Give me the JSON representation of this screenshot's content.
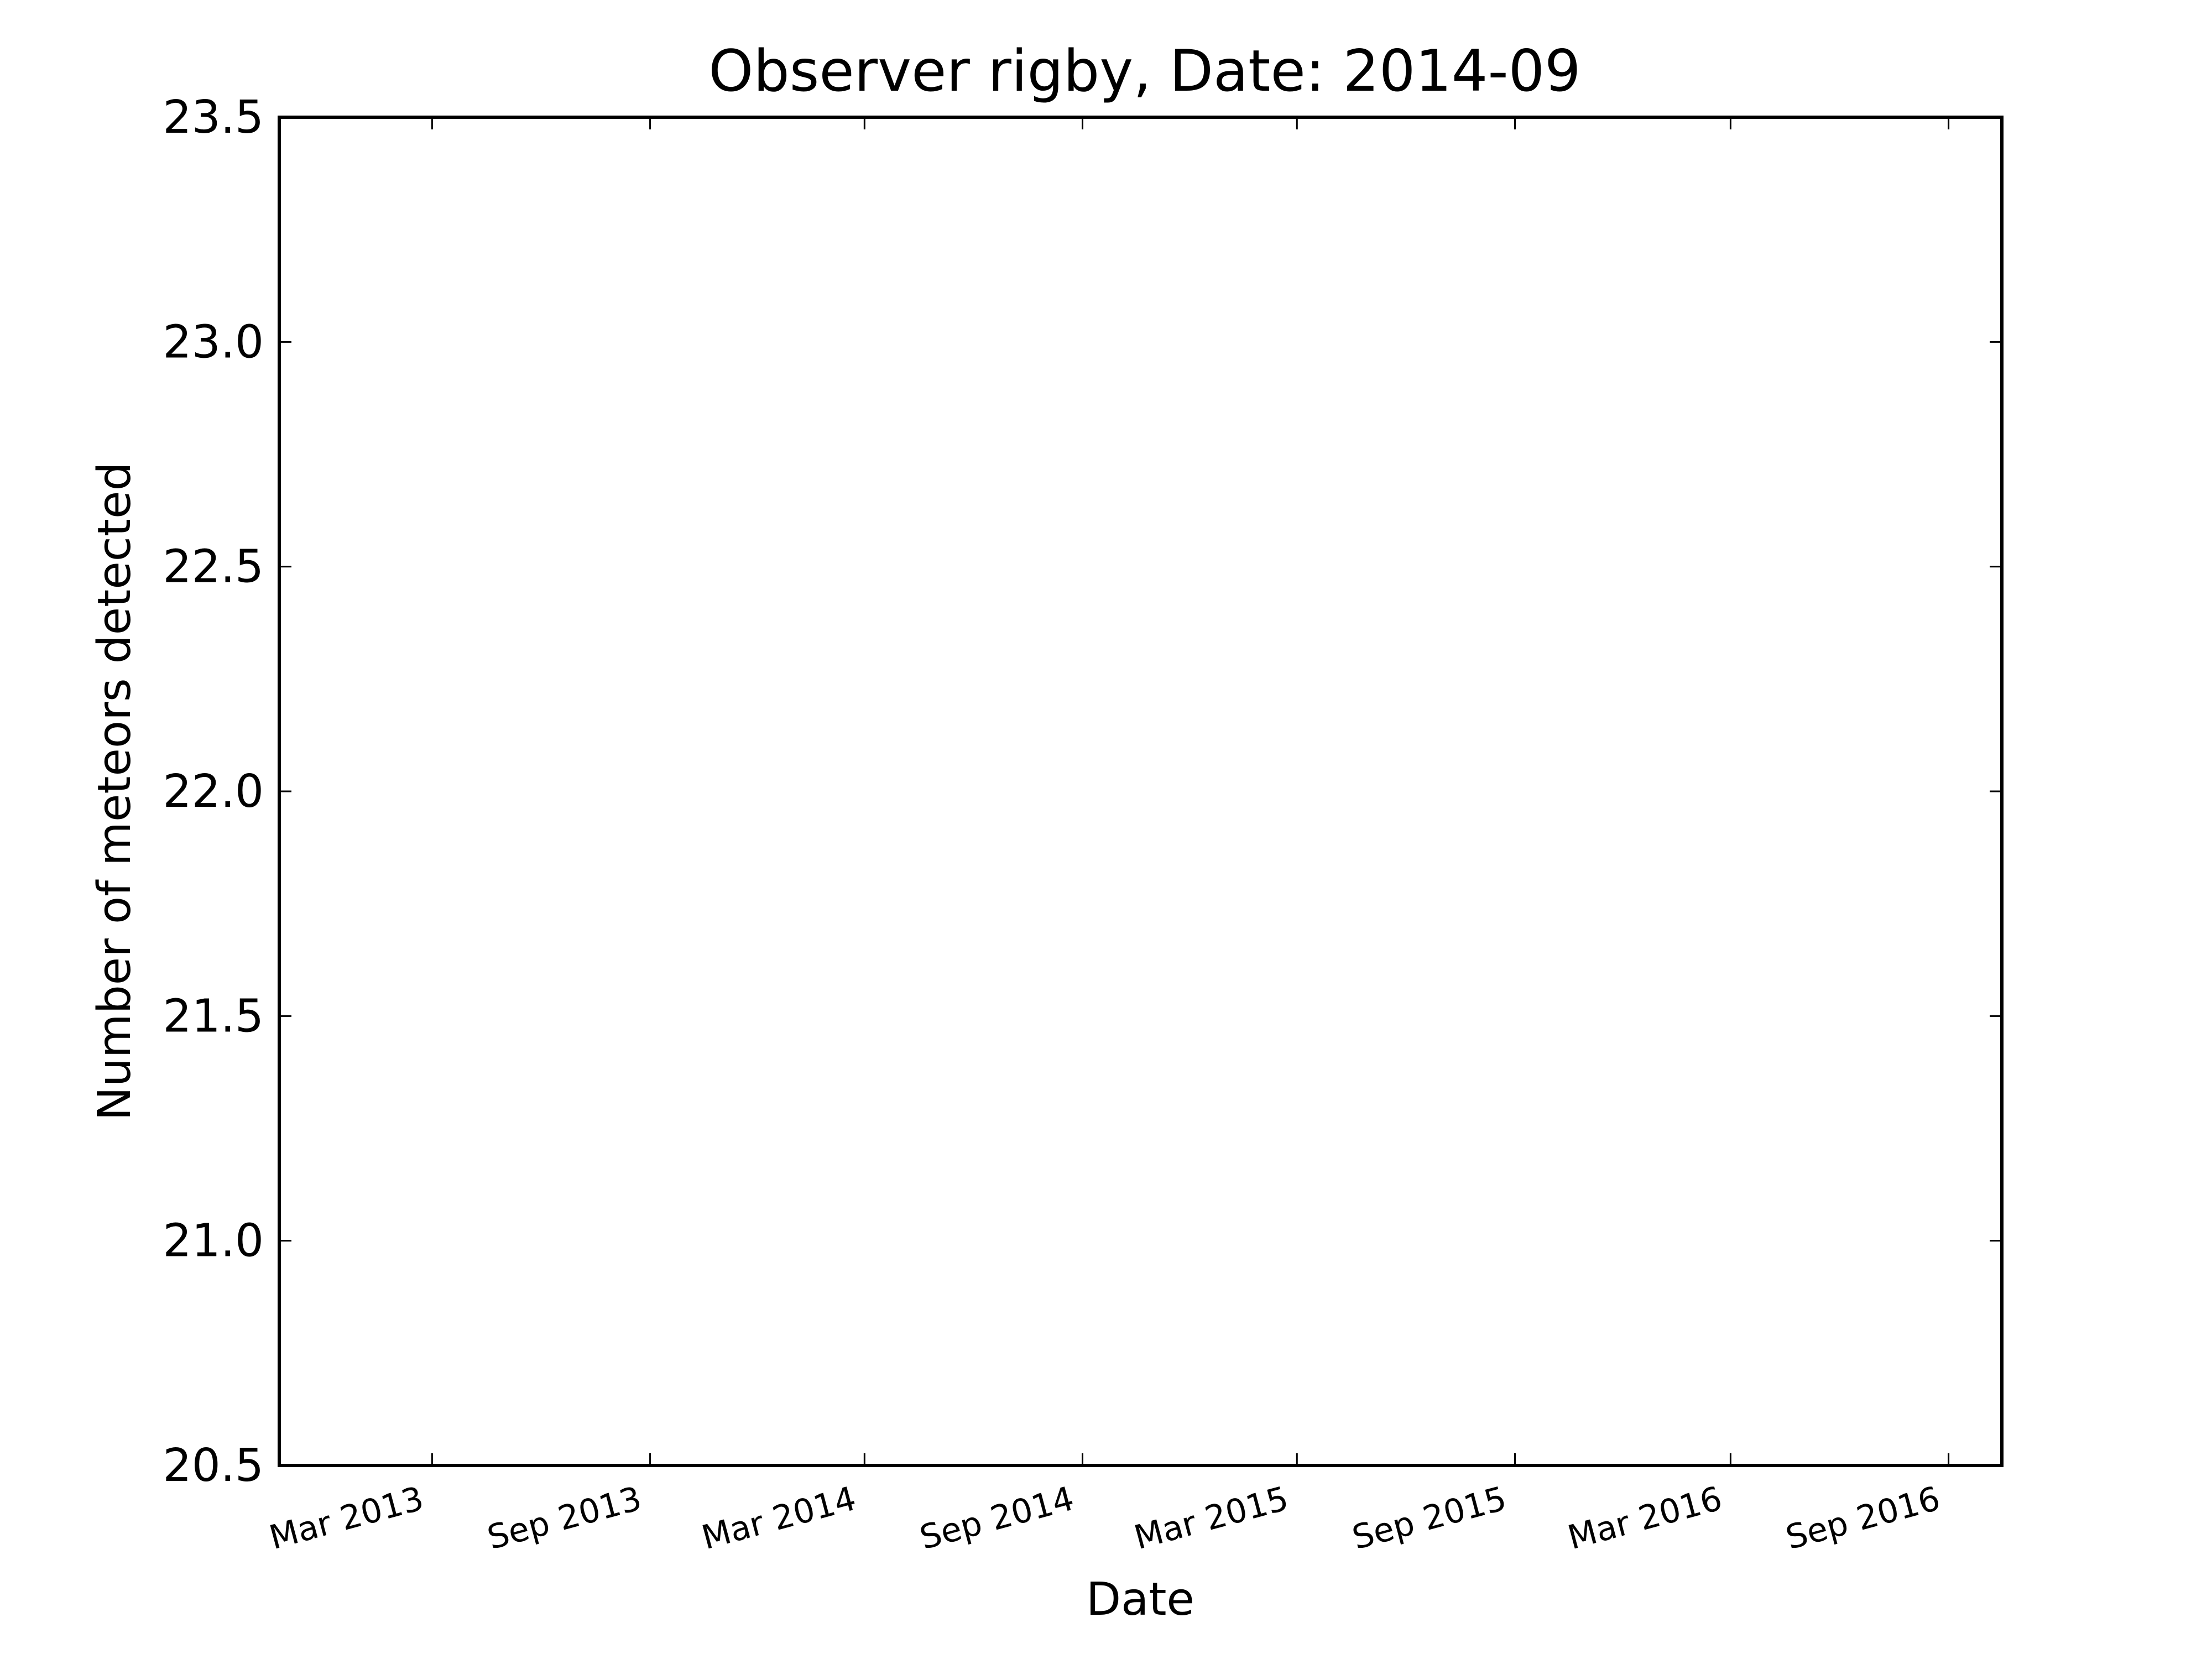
{
  "chart_data": {
    "type": "line",
    "title": "Observer rigby, Date: 2014-09",
    "xlabel": "Date",
    "ylabel": "Number of meteors detected",
    "x_ticks": [
      "Mar 2013",
      "Sep 2013",
      "Mar 2014",
      "Sep 2014",
      "Mar 2015",
      "Sep 2015",
      "Mar 2016",
      "Sep 2016"
    ],
    "y_ticks": [
      "20.5",
      "21.0",
      "21.5",
      "22.0",
      "22.5",
      "23.0",
      "23.5"
    ],
    "ylim": [
      20.5,
      23.5
    ],
    "xlim": [
      "2012-10-23",
      "2016-10-16"
    ],
    "grid": false,
    "series": []
  }
}
